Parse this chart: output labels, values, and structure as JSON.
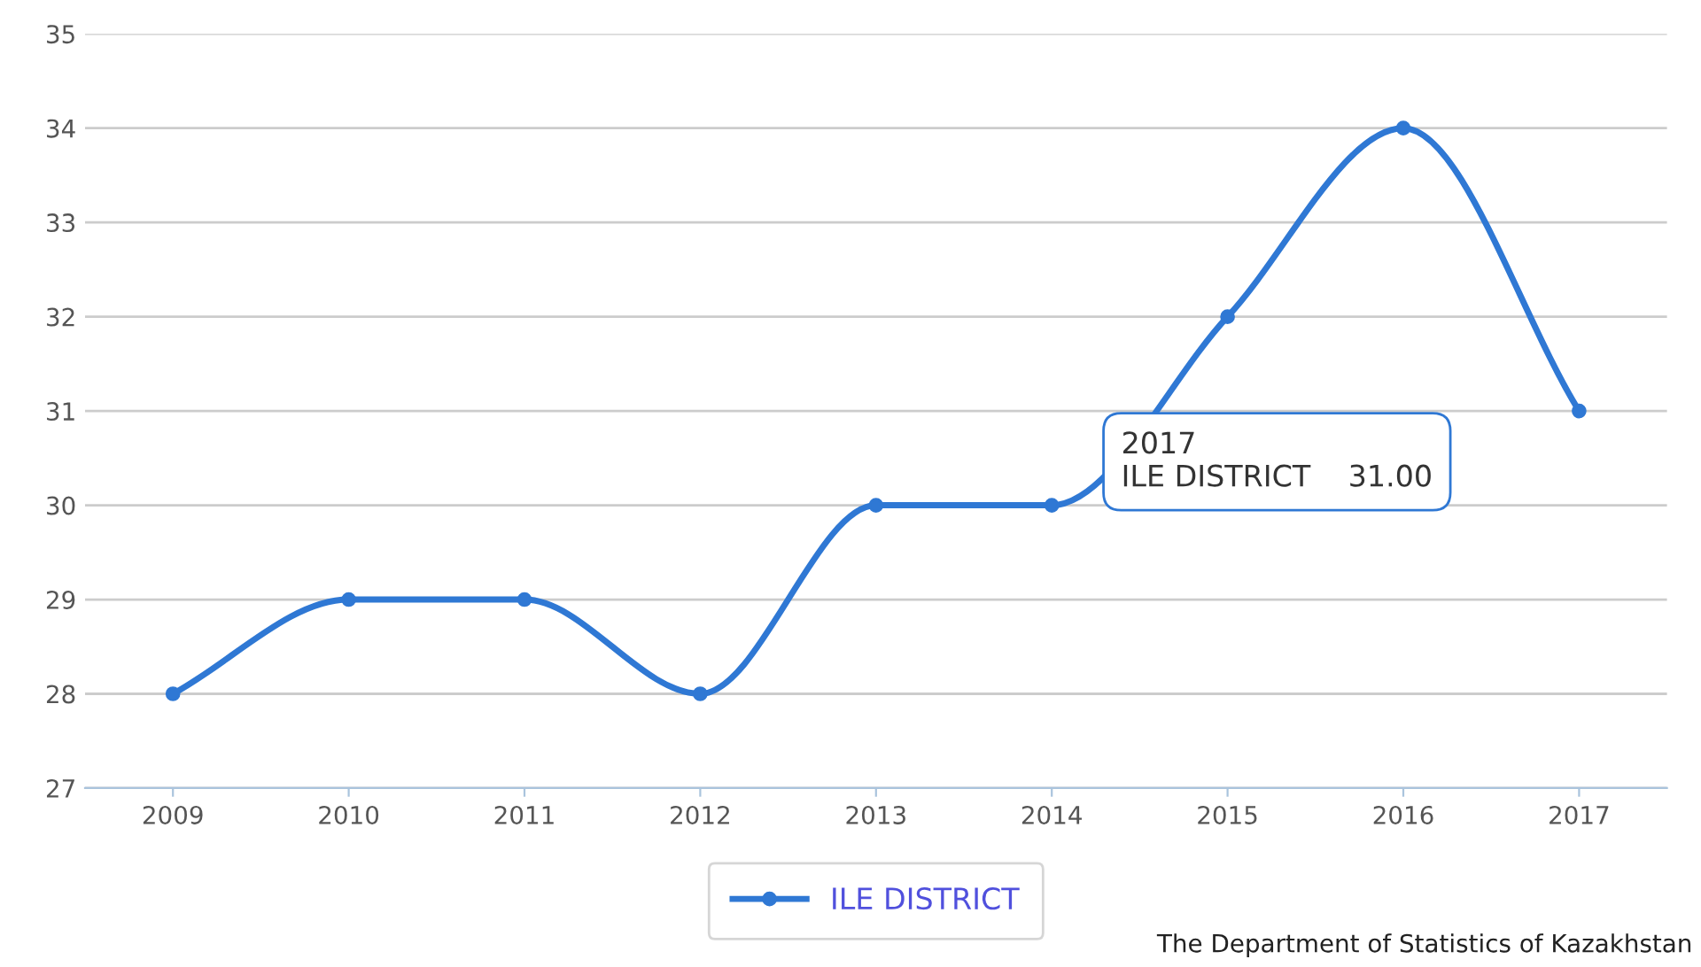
{
  "chart_data": {
    "type": "line",
    "categories": [
      "2009",
      "2010",
      "2011",
      "2012",
      "2013",
      "2014",
      "2015",
      "2016",
      "2017"
    ],
    "series": [
      {
        "name": "ILE DISTRICT",
        "color": "#2f78d4",
        "values": [
          28,
          29,
          29,
          28,
          30,
          30,
          32,
          34,
          31
        ]
      }
    ],
    "ylim": [
      27,
      35
    ],
    "yticks": [
      27,
      28,
      29,
      30,
      31,
      32,
      33,
      34,
      35
    ],
    "grid": "y",
    "legend": "bottom",
    "marker": "circle",
    "line_style": "solid",
    "annotations": [
      "2017\nILE DISTRICT    31.00",
      "The Department of Statistics of Kazakhstan"
    ]
  }
}
